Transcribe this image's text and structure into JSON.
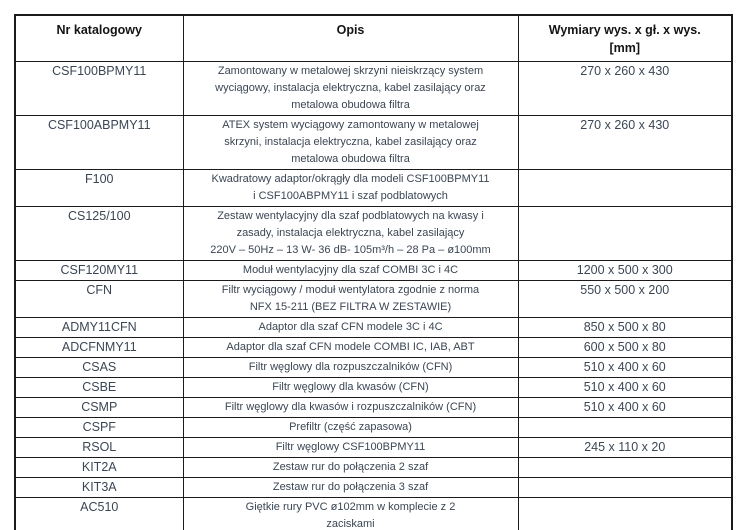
{
  "table": {
    "columns": [
      {
        "key": "code",
        "label": "Nr katalogowy"
      },
      {
        "key": "desc",
        "label": "Opis"
      },
      {
        "key": "dims",
        "label": "Wymiary wys. x gł. x wys.\n[mm]"
      }
    ],
    "rows": [
      {
        "code": "CSF100BPMY11",
        "desc": "Zamontowany w metalowej skrzyni nieiskrzący system\nwyciągowy, instalacja elektryczna, kabel zasilający oraz\nmetalowa obudowa filtra",
        "dims": "270 x 260 x 430"
      },
      {
        "code": "CSF100ABPMY11",
        "desc": "ATEX system wyciągowy zamontowany w metalowej\nskrzyni, instalacja elektryczna, kabel zasilający oraz\nmetalowa obudowa filtra",
        "dims": "270 x 260 x 430"
      },
      {
        "code": "F100",
        "desc": "Kwadratowy adaptor/okrągły dla modeli CSF100BPMY11\ni CSF100ABPMY11 i szaf podblatowych",
        "dims": ""
      },
      {
        "code": "CS125/100",
        "desc": "Zestaw wentylacyjny dla szaf podblatowych na kwasy i\nzasady, instalacja elektryczna, kabel zasilający\n220V – 50Hz – 13 W- 36 dB- 105m³/h – 28 Pa – ø100mm",
        "dims": ""
      },
      {
        "code": "CSF120MY11",
        "desc": "Moduł wentylacyjny dla szaf COMBI 3C i 4C",
        "dims": "1200 x 500 x 300"
      },
      {
        "code": "CFN",
        "desc": "Filtr wyciągowy / moduł wentylatora zgodnie z norma\nNFX 15-211 (BEZ FILTRA W ZESTAWIE)",
        "dims": "550 x 500 x 200"
      },
      {
        "code": "ADMY11CFN",
        "desc": "Adaptor dla szaf CFN modele 3C i 4C",
        "dims": "850 x 500 x 80"
      },
      {
        "code": "ADCFNMY11",
        "desc": "Adaptor dla szaf CFN modele COMBI IC, IAB, ABT",
        "dims": "600 x 500 x 80"
      },
      {
        "code": "CSAS",
        "desc": "Filtr węglowy dla rozpuszczalników (CFN)",
        "dims": "510 x 400 x 60"
      },
      {
        "code": "CSBE",
        "desc": "Filtr węglowy dla kwasów (CFN)",
        "dims": "510 x 400 x 60"
      },
      {
        "code": "CSMP",
        "desc": "Filtr węglowy dla kwasów i rozpuszczalników (CFN)",
        "dims": "510 x 400 x 60"
      },
      {
        "code": "CSPF",
        "desc": "Prefiltr (część zapasowa)",
        "dims": ""
      },
      {
        "code": "RSOL",
        "desc": "Filtr węglowy CSF100BPMY11",
        "dims": "245 x 110 x 20"
      },
      {
        "code": "KIT2A",
        "desc": "Zestaw rur do połączenia 2 szaf",
        "dims": ""
      },
      {
        "code": "KIT3A",
        "desc": "Zestaw rur do połączenia 3 szaf",
        "dims": ""
      },
      {
        "code": "AC510",
        "desc": "Giętkie rury PVC ø102mm w komplecie z 2\nzaciskami",
        "dims": ""
      }
    ]
  }
}
